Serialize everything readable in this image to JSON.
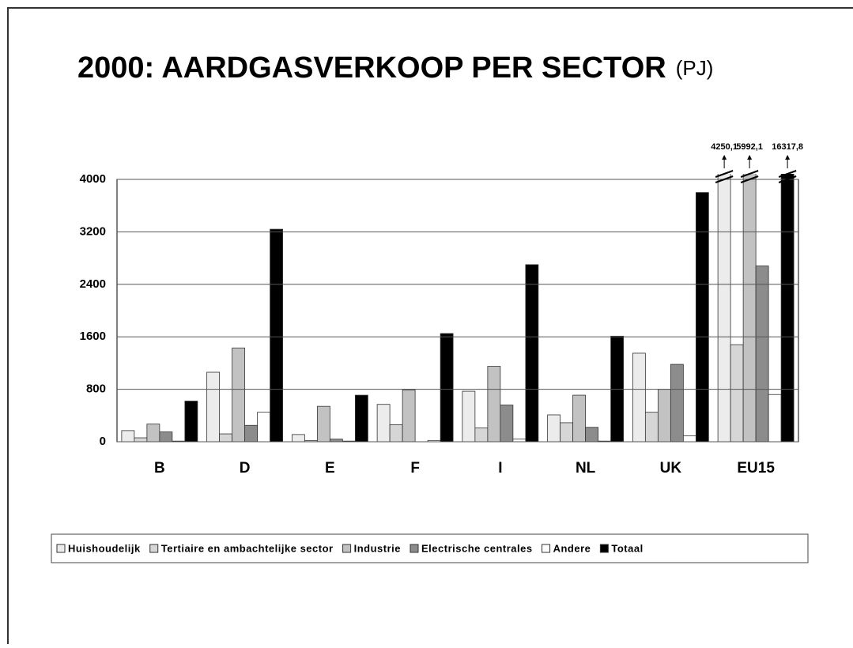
{
  "chart_data": {
    "type": "bar",
    "title": "2000: AARDGASVERKOOP PER SECTOR",
    "title_unit": "(PJ)",
    "categories": [
      "B",
      "D",
      "E",
      "F",
      "I",
      "NL",
      "UK",
      "EU15"
    ],
    "series": [
      {
        "name": "Huishoudelijk",
        "color": "#ececec",
        "values": [
          170,
          1060,
          110,
          570,
          770,
          410,
          1350,
          4250.1
        ],
        "value_labels": [
          null,
          null,
          null,
          null,
          null,
          null,
          null,
          "4250,1"
        ]
      },
      {
        "name": "Tertiaire en ambachtelijke sector",
        "color": "#d6d6d6",
        "values": [
          60,
          120,
          20,
          260,
          210,
          290,
          450,
          1480
        ]
      },
      {
        "name": "Industrie",
        "color": "#c2c2c2",
        "values": [
          270,
          1430,
          540,
          790,
          1150,
          710,
          800,
          5992.1
        ],
        "value_labels": [
          null,
          null,
          null,
          null,
          null,
          null,
          null,
          "5992,1"
        ]
      },
      {
        "name": "Electrische centrales",
        "color": "#8c8c8c",
        "values": [
          150,
          250,
          40,
          0,
          560,
          220,
          1180,
          2680
        ]
      },
      {
        "name": "Andere",
        "color": "#ffffff",
        "values": [
          10,
          450,
          10,
          20,
          40,
          10,
          90,
          720
        ]
      },
      {
        "name": "Totaal",
        "color": "#000000",
        "values": [
          620,
          3240,
          710,
          1650,
          2700,
          1610,
          3800,
          16317.8
        ],
        "value_labels": [
          null,
          null,
          null,
          null,
          null,
          null,
          null,
          "16317,8"
        ]
      }
    ],
    "ylim": [
      0,
      4000
    ],
    "yticks": [
      0,
      800,
      1600,
      2400,
      3200,
      4000
    ],
    "grid": true,
    "legend": "bottom"
  }
}
